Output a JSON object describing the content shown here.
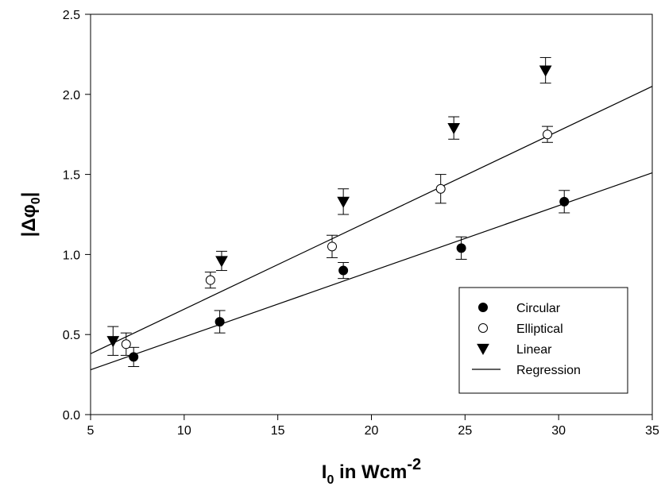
{
  "chart_data": {
    "type": "scatter",
    "xlim": [
      5,
      35
    ],
    "ylim": [
      0,
      2.5
    ],
    "x_ticks": [
      5,
      10,
      15,
      20,
      25,
      30,
      35
    ],
    "y_ticks": [
      0.0,
      0.5,
      1.0,
      1.5,
      2.0,
      2.5
    ],
    "x_tick_labels": [
      "5",
      "10",
      "15",
      "20",
      "25",
      "30",
      "35"
    ],
    "y_tick_labels": [
      "0.0",
      "0.5",
      "1.0",
      "1.5",
      "2.0",
      "2.5"
    ],
    "xlabel": {
      "main": "I",
      "sub": "0",
      "rest": " in Wcm",
      "sup": "-2"
    },
    "ylabel": {
      "main": "|Δφ",
      "sub": "0",
      "rest": "|"
    },
    "grid": false,
    "legend_position": "lower-right",
    "series": [
      {
        "name": "Circular",
        "marker": "filled-circle",
        "points": [
          {
            "x": 7.3,
            "y": 0.36,
            "err": 0.06
          },
          {
            "x": 11.9,
            "y": 0.58,
            "err": 0.07
          },
          {
            "x": 18.5,
            "y": 0.9,
            "err": 0.05
          },
          {
            "x": 24.8,
            "y": 1.04,
            "err": 0.07
          },
          {
            "x": 30.3,
            "y": 1.33,
            "err": 0.07
          }
        ]
      },
      {
        "name": "Elliptical",
        "marker": "open-circle",
        "points": [
          {
            "x": 6.9,
            "y": 0.44,
            "err": 0.07
          },
          {
            "x": 11.4,
            "y": 0.84,
            "err": 0.05
          },
          {
            "x": 17.9,
            "y": 1.05,
            "err": 0.07
          },
          {
            "x": 23.7,
            "y": 1.41,
            "err": 0.09
          },
          {
            "x": 29.4,
            "y": 1.75,
            "err": 0.05
          }
        ]
      },
      {
        "name": "Linear",
        "marker": "filled-triangle-down",
        "points": [
          {
            "x": 6.2,
            "y": 0.46,
            "err": 0.09
          },
          {
            "x": 12.0,
            "y": 0.96,
            "err": 0.06
          },
          {
            "x": 18.5,
            "y": 1.33,
            "err": 0.08
          },
          {
            "x": 24.4,
            "y": 1.79,
            "err": 0.07
          },
          {
            "x": 29.3,
            "y": 2.15,
            "err": 0.08
          }
        ]
      }
    ],
    "regression_lines": [
      {
        "name": "Regression",
        "x": [
          5,
          35
        ],
        "y": [
          0.28,
          1.51
        ]
      },
      {
        "name": "Regression",
        "x": [
          5,
          35
        ],
        "y": [
          0.38,
          2.05
        ]
      }
    ],
    "legend": [
      {
        "label": "Circular",
        "marker": "filled-circle"
      },
      {
        "label": "Elliptical",
        "marker": "open-circle"
      },
      {
        "label": "Linear",
        "marker": "filled-triangle-down"
      },
      {
        "label": "Regression",
        "marker": "line"
      }
    ]
  }
}
